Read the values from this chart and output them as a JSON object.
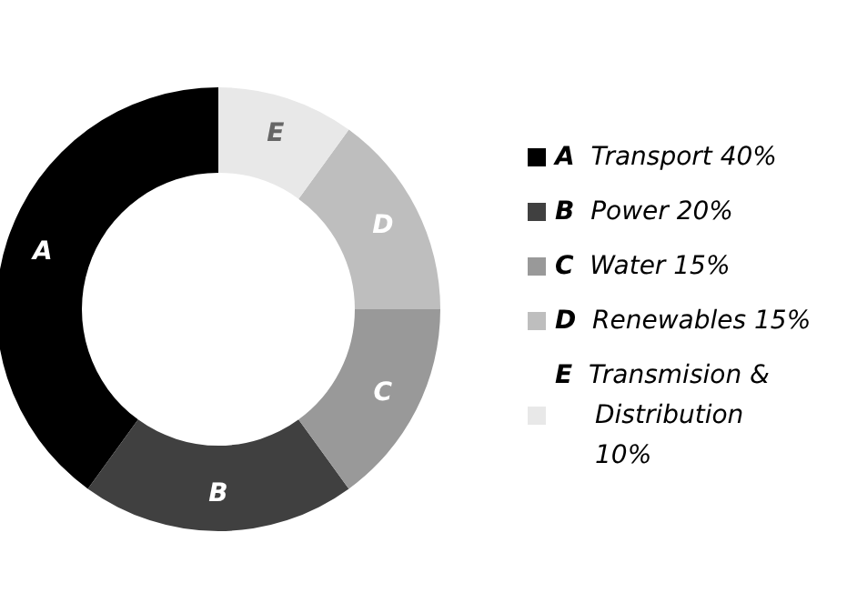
{
  "chart_data": {
    "type": "donut",
    "categories": [
      "Transport 40%",
      "Power 20%",
      "Water 15%",
      "Renewables 15%",
      "Transmision & Distribution 10%"
    ],
    "values": [
      40,
      20,
      15,
      15,
      10
    ],
    "colors": [
      "#000000",
      "#404040",
      "#999999",
      "#bebebe",
      "#e8e8e8"
    ],
    "value_labels": [
      "A",
      "B",
      "C",
      "D",
      "E"
    ],
    "legend": "right"
  }
}
